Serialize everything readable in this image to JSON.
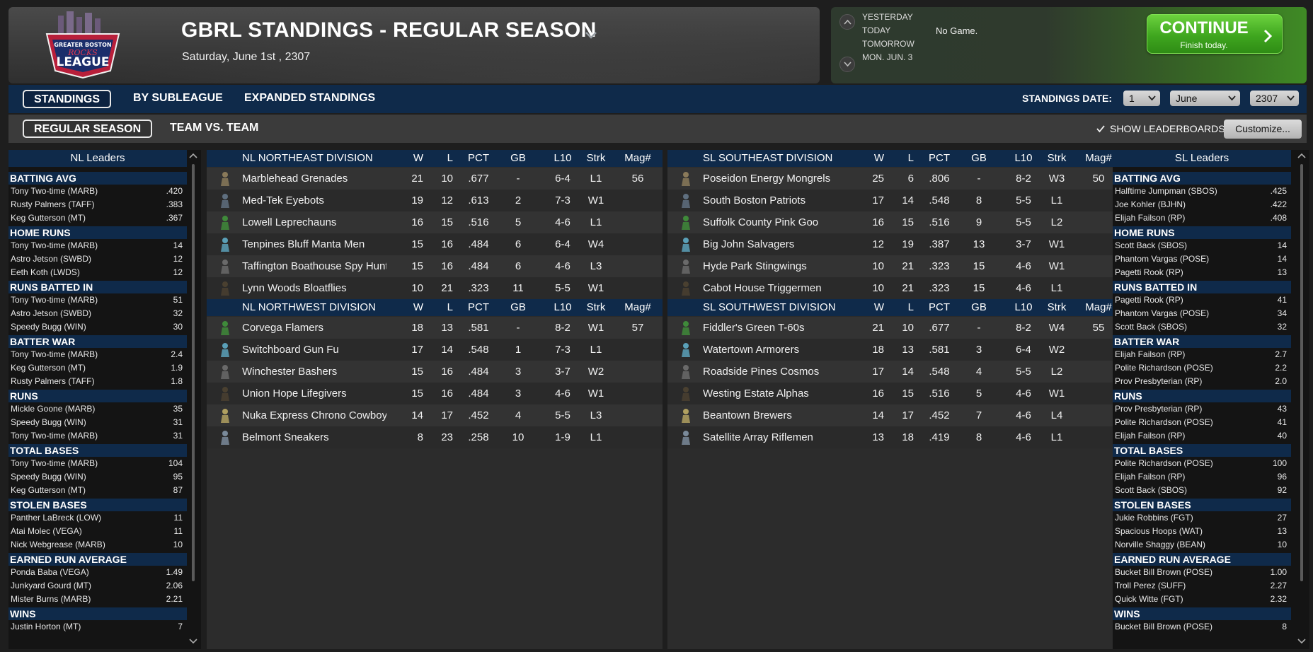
{
  "header": {
    "title": "GBRL STANDINGS - REGULAR SEASON",
    "date": "Saturday, June 1st , 2307",
    "logo_text_top": "GREATER BOSTON",
    "logo_text_mid": "ROCKS",
    "logo_text_main": "LEAGUE"
  },
  "schedule": {
    "days": [
      "YESTERDAY",
      "TODAY",
      "TOMORROW",
      "MON. JUN. 3"
    ],
    "today_game": "No Game.",
    "continue_label": "CONTINUE",
    "continue_sub": "Finish today."
  },
  "tabs": {
    "row1": [
      "STANDINGS",
      "BY SUBLEAGUE",
      "EXPANDED STANDINGS"
    ],
    "row2": [
      "REGULAR SEASON",
      "TEAM VS. TEAM"
    ]
  },
  "standings_date": {
    "label": "STANDINGS DATE:",
    "day": "1",
    "month": "June",
    "year": "2307"
  },
  "show_leaderboards": "SHOW LEADERBOARDS",
  "customize_label": "Customize...",
  "columns": {
    "w": "W",
    "l": "L",
    "pct": "PCT",
    "gb": "GB",
    "l10": "L10",
    "strk": "Strk",
    "mag": "Mag#"
  },
  "nl_leaders": {
    "title": "NL Leaders",
    "categories": [
      {
        "name": "BATTING AVG",
        "rows": [
          [
            "Tony Two-time (MARB)",
            ".420"
          ],
          [
            "Rusty Palmers (TAFF)",
            ".383"
          ],
          [
            "Keg Gutterson (MT)",
            ".367"
          ]
        ]
      },
      {
        "name": "HOME RUNS",
        "rows": [
          [
            "Tony Two-time (MARB)",
            "14"
          ],
          [
            "Astro Jetson (SWBD)",
            "12"
          ],
          [
            "Eeth Koth (LWDS)",
            "12"
          ]
        ]
      },
      {
        "name": "RUNS BATTED IN",
        "rows": [
          [
            "Tony Two-time (MARB)",
            "51"
          ],
          [
            "Astro Jetson (SWBD)",
            "32"
          ],
          [
            "Speedy Bugg (WIN)",
            "30"
          ]
        ]
      },
      {
        "name": "BATTER WAR",
        "rows": [
          [
            "Tony Two-time (MARB)",
            "2.4"
          ],
          [
            "Keg Gutterson (MT)",
            "1.9"
          ],
          [
            "Rusty Palmers (TAFF)",
            "1.8"
          ]
        ]
      },
      {
        "name": "RUNS",
        "rows": [
          [
            "Mickle Goone (MARB)",
            "35"
          ],
          [
            "Speedy Bugg (WIN)",
            "31"
          ],
          [
            "Tony Two-time (MARB)",
            "31"
          ]
        ]
      },
      {
        "name": "TOTAL BASES",
        "rows": [
          [
            "Tony Two-time (MARB)",
            "104"
          ],
          [
            "Speedy Bugg (WIN)",
            "95"
          ],
          [
            "Keg Gutterson (MT)",
            "87"
          ]
        ]
      },
      {
        "name": "STOLEN BASES",
        "rows": [
          [
            "Panther LaBreck (LOW)",
            "11"
          ],
          [
            "Atai Molec (VEGA)",
            "11"
          ],
          [
            "Nick Webgrease (MARB)",
            "10"
          ]
        ]
      },
      {
        "name": "EARNED RUN AVERAGE",
        "rows": [
          [
            "Ponda Baba (VEGA)",
            "1.49"
          ],
          [
            "Junkyard Gourd (MT)",
            "2.06"
          ],
          [
            "Mister Burns (MARB)",
            "2.21"
          ]
        ]
      },
      {
        "name": "WINS",
        "rows": [
          [
            "Justin Horton (MT)",
            "7"
          ]
        ]
      }
    ]
  },
  "sl_leaders": {
    "title": "SL Leaders",
    "categories": [
      {
        "name": "BATTING AVG",
        "rows": [
          [
            "Halftime Jumpman (SBOS)",
            ".425"
          ],
          [
            "Joe Kohler (BJHN)",
            ".422"
          ],
          [
            "Elijah Failson (RP)",
            ".408"
          ]
        ]
      },
      {
        "name": "HOME RUNS",
        "rows": [
          [
            "Scott Back (SBOS)",
            "14"
          ],
          [
            "Phantom Vargas (POSE)",
            "14"
          ],
          [
            "Pagetti Rook (RP)",
            "13"
          ]
        ]
      },
      {
        "name": "RUNS BATTED IN",
        "rows": [
          [
            "Pagetti Rook (RP)",
            "41"
          ],
          [
            "Phantom Vargas (POSE)",
            "34"
          ],
          [
            "Scott Back (SBOS)",
            "32"
          ]
        ]
      },
      {
        "name": "BATTER WAR",
        "rows": [
          [
            "Elijah Failson (RP)",
            "2.7"
          ],
          [
            "Polite Richardson (POSE)",
            "2.2"
          ],
          [
            "Prov Presbyterian (RP)",
            "2.0"
          ]
        ]
      },
      {
        "name": "RUNS",
        "rows": [
          [
            "Prov Presbyterian (RP)",
            "43"
          ],
          [
            "Polite Richardson (POSE)",
            "41"
          ],
          [
            "Elijah Failson (RP)",
            "40"
          ]
        ]
      },
      {
        "name": "TOTAL BASES",
        "rows": [
          [
            "Polite Richardson (POSE)",
            "100"
          ],
          [
            "Elijah Failson (RP)",
            "96"
          ],
          [
            "Scott Back (SBOS)",
            "92"
          ]
        ]
      },
      {
        "name": "STOLEN BASES",
        "rows": [
          [
            "Jukie Robbins (FGT)",
            "27"
          ],
          [
            "Spacious Hoops (WAT)",
            "13"
          ],
          [
            "Norville Shaggy (BEAN)",
            "10"
          ]
        ]
      },
      {
        "name": "EARNED RUN AVERAGE",
        "rows": [
          [
            "Bucket Bill Brown (POSE)",
            "1.00"
          ],
          [
            "Troll Perez (SUFF)",
            "2.27"
          ],
          [
            "Quick Witte (FGT)",
            "2.32"
          ]
        ]
      },
      {
        "name": "WINS",
        "rows": [
          [
            "Bucket Bill Brown (POSE)",
            "8"
          ]
        ]
      }
    ]
  },
  "divisions": {
    "nl": [
      {
        "name": "NL NORTHEAST DIVISION",
        "teams": [
          {
            "name": "Marblehead Grenades",
            "w": "21",
            "l": "10",
            "pct": ".677",
            "gb": "-",
            "l10": "6-4",
            "strk": "L1",
            "mag": "56"
          },
          {
            "name": "Med-Tek Eyebots",
            "w": "19",
            "l": "12",
            "pct": ".613",
            "gb": "2",
            "l10": "7-3",
            "strk": "W1",
            "mag": ""
          },
          {
            "name": "Lowell Leprechauns",
            "w": "16",
            "l": "15",
            "pct": ".516",
            "gb": "5",
            "l10": "4-6",
            "strk": "L1",
            "mag": ""
          },
          {
            "name": "Tenpines Bluff Manta Men",
            "w": "15",
            "l": "16",
            "pct": ".484",
            "gb": "6",
            "l10": "6-4",
            "strk": "W4",
            "mag": ""
          },
          {
            "name": "Taffington Boathouse Spy Hunters",
            "w": "15",
            "l": "16",
            "pct": ".484",
            "gb": "6",
            "l10": "4-6",
            "strk": "L3",
            "mag": ""
          },
          {
            "name": "Lynn Woods Bloatflies",
            "w": "10",
            "l": "21",
            "pct": ".323",
            "gb": "11",
            "l10": "5-5",
            "strk": "W1",
            "mag": ""
          }
        ]
      },
      {
        "name": "NL NORTHWEST DIVISION",
        "teams": [
          {
            "name": "Corvega Flamers",
            "w": "18",
            "l": "13",
            "pct": ".581",
            "gb": "-",
            "l10": "8-2",
            "strk": "W1",
            "mag": "57"
          },
          {
            "name": "Switchboard Gun Fu",
            "w": "17",
            "l": "14",
            "pct": ".548",
            "gb": "1",
            "l10": "7-3",
            "strk": "L1",
            "mag": ""
          },
          {
            "name": "Winchester Bashers",
            "w": "15",
            "l": "16",
            "pct": ".484",
            "gb": "3",
            "l10": "3-7",
            "strk": "W2",
            "mag": ""
          },
          {
            "name": "Union Hope Lifegivers",
            "w": "15",
            "l": "16",
            "pct": ".484",
            "gb": "3",
            "l10": "4-6",
            "strk": "W1",
            "mag": ""
          },
          {
            "name": "Nuka Express Chrono Cowboys",
            "w": "14",
            "l": "17",
            "pct": ".452",
            "gb": "4",
            "l10": "5-5",
            "strk": "L3",
            "mag": ""
          },
          {
            "name": "Belmont Sneakers",
            "w": "8",
            "l": "23",
            "pct": ".258",
            "gb": "10",
            "l10": "1-9",
            "strk": "L1",
            "mag": ""
          }
        ]
      }
    ],
    "sl": [
      {
        "name": "SL SOUTHEAST DIVISION",
        "teams": [
          {
            "name": "Poseidon Energy Mongrels",
            "w": "25",
            "l": "6",
            "pct": ".806",
            "gb": "-",
            "l10": "8-2",
            "strk": "W3",
            "mag": "50"
          },
          {
            "name": "South Boston Patriots",
            "w": "17",
            "l": "14",
            "pct": ".548",
            "gb": "8",
            "l10": "5-5",
            "strk": "L1",
            "mag": ""
          },
          {
            "name": "Suffolk County Pink Goo",
            "w": "16",
            "l": "15",
            "pct": ".516",
            "gb": "9",
            "l10": "5-5",
            "strk": "L2",
            "mag": ""
          },
          {
            "name": "Big John Salvagers",
            "w": "12",
            "l": "19",
            "pct": ".387",
            "gb": "13",
            "l10": "3-7",
            "strk": "W1",
            "mag": ""
          },
          {
            "name": "Hyde Park Stingwings",
            "w": "10",
            "l": "21",
            "pct": ".323",
            "gb": "15",
            "l10": "4-6",
            "strk": "W1",
            "mag": ""
          },
          {
            "name": "Cabot House Triggermen",
            "w": "10",
            "l": "21",
            "pct": ".323",
            "gb": "15",
            "l10": "4-6",
            "strk": "L1",
            "mag": ""
          }
        ]
      },
      {
        "name": "SL SOUTHWEST DIVISION",
        "teams": [
          {
            "name": "Fiddler's Green T-60s",
            "w": "21",
            "l": "10",
            "pct": ".677",
            "gb": "-",
            "l10": "8-2",
            "strk": "W4",
            "mag": "55"
          },
          {
            "name": "Watertown Armorers",
            "w": "18",
            "l": "13",
            "pct": ".581",
            "gb": "3",
            "l10": "6-4",
            "strk": "W2",
            "mag": ""
          },
          {
            "name": "Roadside Pines Cosmos",
            "w": "17",
            "l": "14",
            "pct": ".548",
            "gb": "4",
            "l10": "5-5",
            "strk": "L2",
            "mag": ""
          },
          {
            "name": "Westing Estate Alphas",
            "w": "16",
            "l": "15",
            "pct": ".516",
            "gb": "5",
            "l10": "4-6",
            "strk": "W1",
            "mag": ""
          },
          {
            "name": "Beantown Brewers",
            "w": "14",
            "l": "17",
            "pct": ".452",
            "gb": "7",
            "l10": "4-6",
            "strk": "L4",
            "mag": ""
          },
          {
            "name": "Satellite Array Riflemen",
            "w": "13",
            "l": "18",
            "pct": ".419",
            "gb": "8",
            "l10": "4-6",
            "strk": "L1",
            "mag": ""
          }
        ]
      }
    ]
  },
  "colors": {
    "panel_header": "#0f2a4a",
    "continue_green": "#3fa61f"
  }
}
